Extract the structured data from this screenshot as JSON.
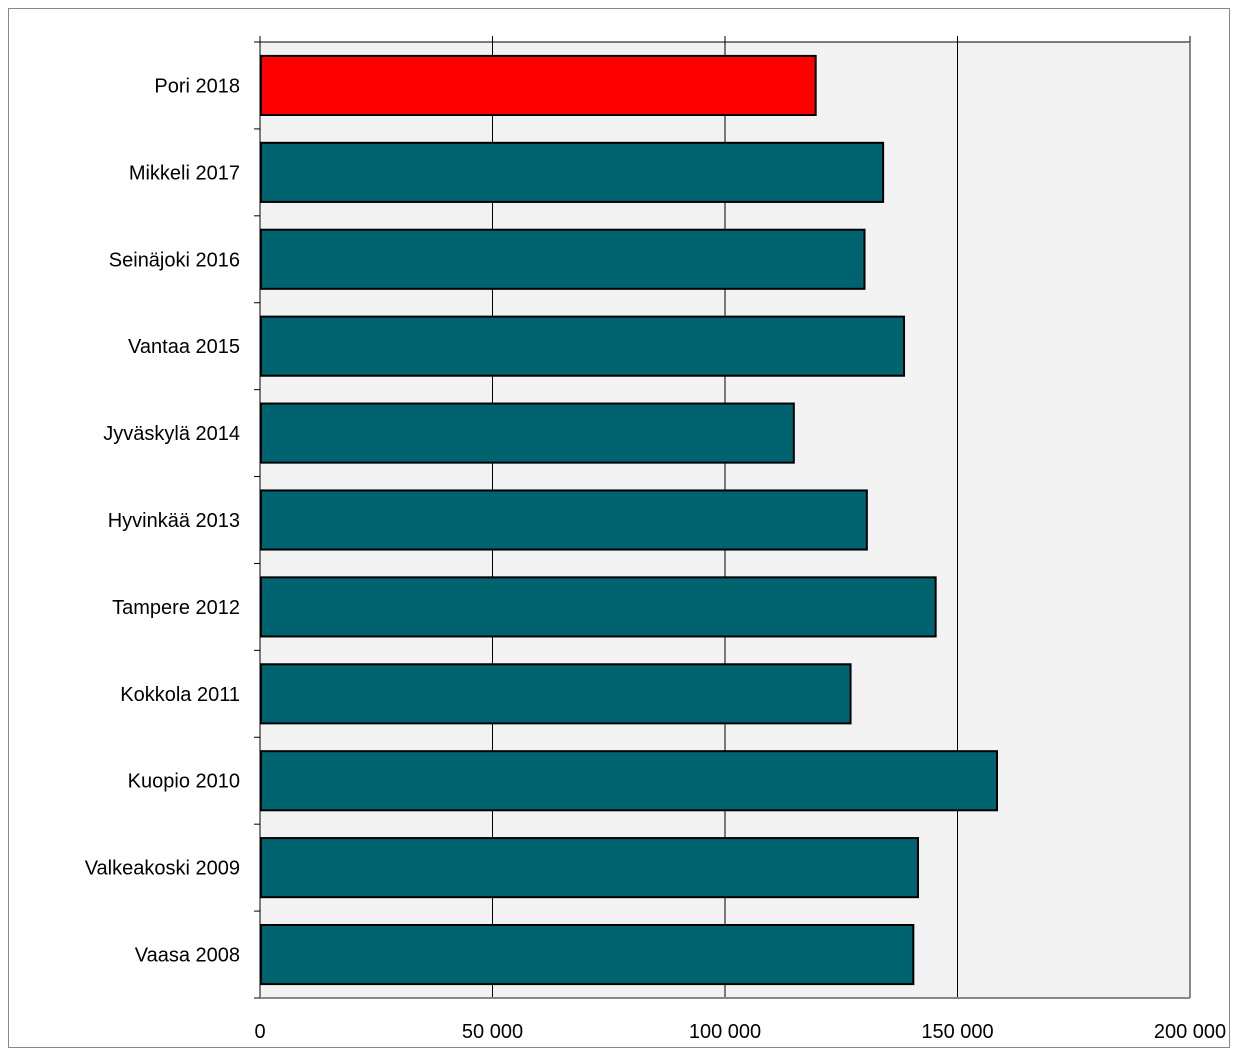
{
  "chart_data": {
    "type": "bar",
    "orientation": "horizontal",
    "categories": [
      "Pori 2018",
      "Mikkeli 2017",
      "Seinäjoki 2016",
      "Vantaa 2015",
      "Jyväskylä 2014",
      "Hyvinkää 2013",
      "Tampere 2012",
      "Kokkola 2011",
      "Kuopio 2010",
      "Valkeakoski 2009",
      "Vaasa 2008"
    ],
    "values": [
      119500,
      134000,
      130000,
      138500,
      114800,
      130500,
      145300,
      127000,
      158500,
      141500,
      140500
    ],
    "colors": [
      "#ff0000",
      "#006470",
      "#006470",
      "#006470",
      "#006470",
      "#006470",
      "#006470",
      "#006470",
      "#006470",
      "#006470",
      "#006470"
    ],
    "xlim": [
      0,
      200000
    ],
    "xticks": [
      0,
      50000,
      100000,
      150000,
      200000
    ],
    "xtick_labels": [
      "0",
      "50 000",
      "100 000",
      "150 000",
      "200 000"
    ],
    "grid": "vertical",
    "plot_background": "#f2f2f2",
    "title": "",
    "xlabel": "",
    "ylabel": ""
  }
}
